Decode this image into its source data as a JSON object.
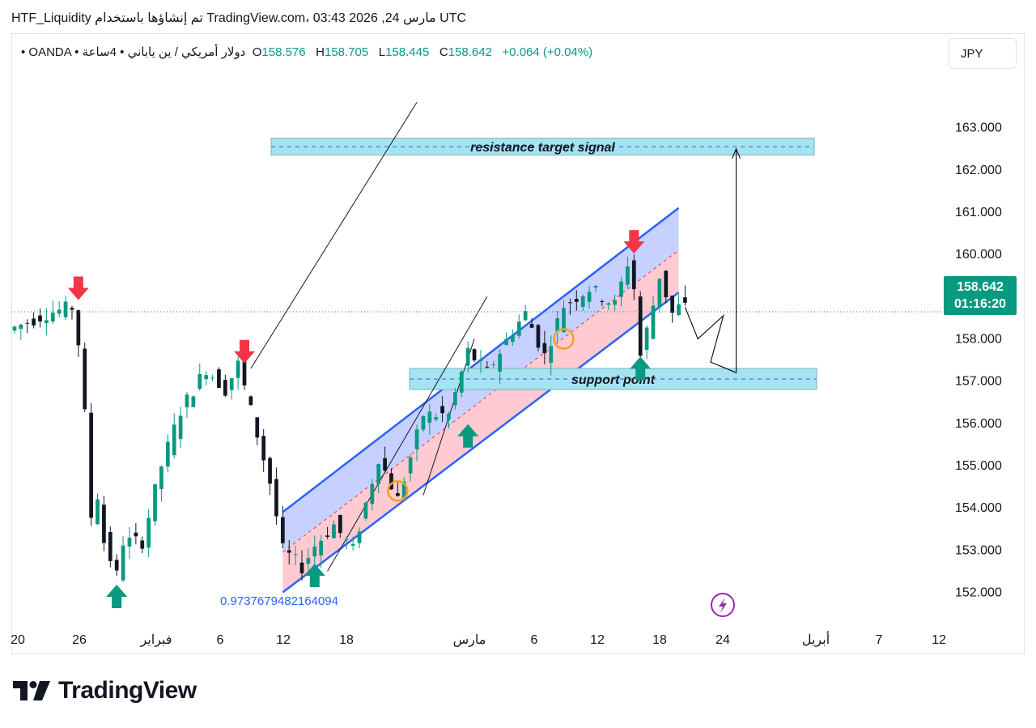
{
  "header": {
    "text": "HTF_Liquidity تم إنشاؤها باستخدام TradingView.com، 03:43 2026 ,24 مارس UTC"
  },
  "symbol": {
    "description": "• OANDA • دولار أمريكي / ين ياباني • 4ساعة",
    "open_label": "O",
    "open": "158.576",
    "high_label": "H",
    "high": "158.705",
    "low_label": "L",
    "low": "158.445",
    "close_label": "C",
    "close": "158.642",
    "change": "+0.064 (+0.04%)"
  },
  "currency_badge": "JPY",
  "price_tag": {
    "price": "158.642",
    "countdown": "01:16:20"
  },
  "annotations": {
    "resistance_label": "resistance  target  signal",
    "support_label": "support  point",
    "fib_value": "0.9737679482164094"
  },
  "footer": {
    "logo_text": "TradingView"
  },
  "colors": {
    "up": "#089981",
    "down": "#131722",
    "channel_line": "#2962ff",
    "channel_upper_fill": "#bcc9ff",
    "channel_lower_fill": "#ffc4cc",
    "zone_fill": "#a5e3ef",
    "arrow_up": "#089981",
    "arrow_down": "#f23645",
    "circle": "#f7a21b",
    "price_tag": "#089981"
  },
  "chart_data": {
    "type": "candlestick",
    "symbol": "USDJPY",
    "timeframe": "4H",
    "y_ticks": [
      "152.000",
      "153.000",
      "154.000",
      "155.000",
      "156.000",
      "157.000",
      "158.000",
      "159.000",
      "160.000",
      "161.000",
      "162.000",
      "163.000"
    ],
    "ylim": [
      151.3,
      164.2
    ],
    "x_ticks": [
      "20",
      "26",
      "فبراير",
      "6",
      "12",
      "18",
      "مارس",
      "6",
      "12",
      "18",
      "24",
      "أبريل",
      "7",
      "12"
    ],
    "last_price": 158.642,
    "resistance_zone": [
      162.35,
      162.75
    ],
    "support_zone": [
      156.8,
      157.3
    ],
    "channel": {
      "lower": {
        "start": 152.0,
        "end": 159.1
      },
      "upper": {
        "start": 153.9,
        "end": 161.1
      }
    },
    "path": [
      [
        0,
        158.2
      ],
      [
        6,
        158.6
      ],
      [
        10,
        158.75
      ],
      [
        11,
        157.9
      ],
      [
        12,
        156.2
      ],
      [
        13,
        153.8
      ],
      [
        14,
        154.3
      ],
      [
        15,
        153.2
      ],
      [
        17,
        152.4
      ],
      [
        18,
        153.2
      ],
      [
        21,
        153.2
      ],
      [
        24,
        155.0
      ],
      [
        27,
        156.3
      ],
      [
        31,
        157.3
      ],
      [
        34,
        156.8
      ],
      [
        36,
        157.4
      ],
      [
        38,
        156.3
      ],
      [
        41,
        154.6
      ],
      [
        43,
        153.0
      ],
      [
        46,
        152.6
      ],
      [
        48,
        153.1
      ],
      [
        51,
        153.6
      ],
      [
        54,
        153.0
      ],
      [
        58,
        155.2
      ],
      [
        61,
        154.2
      ],
      [
        65,
        156.2
      ],
      [
        69,
        156.2
      ],
      [
        72,
        157.7
      ],
      [
        75,
        157.2
      ],
      [
        79,
        158.2
      ],
      [
        81,
        158.6
      ],
      [
        84,
        157.6
      ],
      [
        87,
        158.8
      ],
      [
        91,
        159.2
      ],
      [
        95,
        158.8
      ],
      [
        97,
        159.8
      ],
      [
        98,
        159.2
      ],
      [
        99,
        157.6
      ],
      [
        101,
        158.8
      ],
      [
        102,
        159.5
      ],
      [
        104,
        158.6
      ],
      [
        105,
        158.75
      ]
    ],
    "signals": [
      {
        "type": "sell",
        "bar": 10,
        "price": 158.9
      },
      {
        "type": "sell",
        "bar": 36,
        "price": 157.4
      },
      {
        "type": "sell",
        "bar": 97,
        "price": 160.0
      },
      {
        "type": "buy",
        "bar": 16,
        "price": 152.2
      },
      {
        "type": "buy",
        "bar": 47,
        "price": 152.7
      },
      {
        "type": "buy",
        "bar": 71,
        "price": 156.0
      },
      {
        "type": "buy",
        "bar": 98,
        "price": 157.6
      }
    ],
    "circles": [
      {
        "bar": 60,
        "price": 154.4
      },
      {
        "bar": 86,
        "price": 158.0
      }
    ],
    "projection": [
      [
        105,
        158.75
      ],
      [
        107,
        158.0
      ],
      [
        111,
        158.55
      ],
      [
        109,
        157.45
      ],
      [
        113,
        157.2
      ],
      [
        113,
        162.5
      ]
    ]
  }
}
